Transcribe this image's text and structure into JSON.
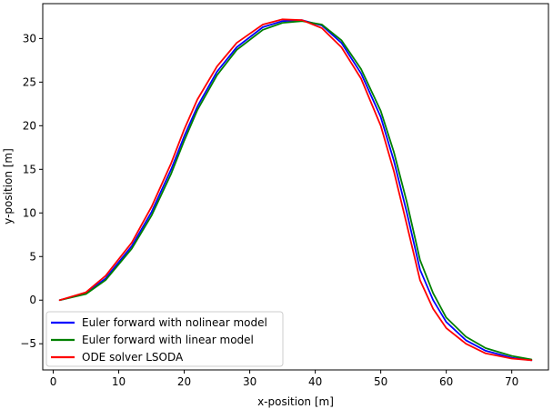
{
  "chart_data": {
    "type": "line",
    "title": "",
    "xlabel": "x-position [m]",
    "ylabel": "y-position [m]",
    "xlim": [
      -1.6,
      75.6
    ],
    "ylim": [
      -8.0,
      34.0
    ],
    "xticks": [
      0,
      10,
      20,
      30,
      40,
      50,
      60,
      70
    ],
    "yticks": [
      -5,
      0,
      5,
      10,
      15,
      20,
      25,
      30
    ],
    "grid": false,
    "legend_position": "lower-left",
    "series": [
      {
        "name": "Euler forward with nolinear model",
        "color": "#0000ff",
        "x": [
          1,
          5,
          8,
          12,
          15,
          18,
          20,
          22,
          25,
          28,
          32,
          35,
          38,
          41,
          44,
          47,
          50,
          52,
          54,
          56,
          58,
          60,
          63,
          66,
          70,
          73
        ],
        "y": [
          0,
          0.8,
          2.5,
          6.2,
          10.1,
          15.0,
          18.8,
          22.2,
          26.2,
          29.0,
          31.3,
          32.0,
          32.1,
          31.5,
          29.5,
          26.0,
          21.0,
          16.0,
          10.0,
          3.5,
          0.0,
          -2.5,
          -4.6,
          -5.8,
          -6.6,
          -6.9
        ]
      },
      {
        "name": "Euler forward with linear model",
        "color": "#008000",
        "x": [
          1,
          5,
          8,
          12,
          15,
          18,
          20,
          22,
          25,
          28,
          32,
          35,
          38,
          41,
          44,
          47,
          50,
          52,
          54,
          56,
          58,
          60,
          63,
          66,
          70,
          73
        ],
        "y": [
          0,
          0.7,
          2.3,
          5.9,
          9.7,
          14.5,
          18.3,
          21.8,
          25.8,
          28.7,
          31.0,
          31.8,
          32.0,
          31.6,
          29.8,
          26.5,
          21.7,
          17.0,
          11.2,
          4.6,
          0.8,
          -2.0,
          -4.2,
          -5.5,
          -6.4,
          -6.8
        ]
      },
      {
        "name": "ODE solver LSODA",
        "color": "#ff0000",
        "x": [
          1,
          5,
          8,
          12,
          15,
          18,
          20,
          22,
          25,
          28,
          32,
          35,
          38,
          41,
          44,
          47,
          50,
          52,
          54,
          56,
          58,
          60,
          63,
          66,
          70,
          73
        ],
        "y": [
          0,
          0.9,
          2.8,
          6.6,
          10.7,
          15.7,
          19.6,
          23.0,
          26.8,
          29.5,
          31.6,
          32.2,
          32.1,
          31.2,
          29.0,
          25.4,
          20.0,
          14.8,
          8.6,
          2.3,
          -1.0,
          -3.2,
          -5.0,
          -6.1,
          -6.7,
          -6.9
        ]
      }
    ]
  }
}
